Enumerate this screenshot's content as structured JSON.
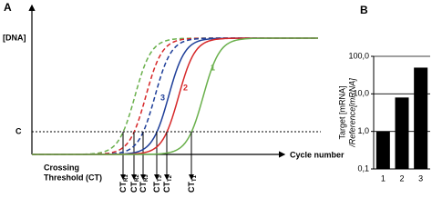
{
  "chart_data": [
    {
      "type": "schematic",
      "panel": "A",
      "ylabel": "[DNA]",
      "threshold_label": "C",
      "xlabel": "Cycle number",
      "annotation": [
        "Crossing",
        "Threshold (CT)"
      ],
      "curves": [
        {
          "label": null,
          "color": "#6ab04c",
          "dashed": true
        },
        {
          "label": null,
          "color": "#d62728",
          "dashed": true
        },
        {
          "label": null,
          "color": "#1f3f99",
          "dashed": true
        },
        {
          "label": "3",
          "color": "#1f3f99",
          "dashed": false
        },
        {
          "label": "2",
          "color": "#d62728",
          "dashed": false
        },
        {
          "label": "1",
          "color": "#6ab04c",
          "dashed": false
        }
      ],
      "ct_labels": [
        {
          "text": "CT",
          "sub": "R1"
        },
        {
          "text": "CT",
          "sub": "R2"
        },
        {
          "text": "CT",
          "sub": "R3"
        },
        {
          "text": "CT",
          "sub": "T3"
        },
        {
          "text": "CT",
          "sub": "T2"
        },
        {
          "text": "CT",
          "sub": "T1"
        }
      ]
    },
    {
      "type": "bar",
      "panel": "B",
      "ylabel": [
        "Target [mRNA]",
        "/Reference[mRNA]"
      ],
      "categories": [
        "1",
        "2",
        "3"
      ],
      "values": [
        1,
        8,
        50
      ],
      "color": "#000000",
      "log_scale": true,
      "ylim": [
        0.1,
        100
      ],
      "yticks": [
        {
          "value": 0.1,
          "label": "0,1"
        },
        {
          "value": 1,
          "label": "1,0"
        },
        {
          "value": 10,
          "label": "10,0"
        },
        {
          "value": 100,
          "label": "100,0"
        }
      ],
      "grid": true
    }
  ]
}
